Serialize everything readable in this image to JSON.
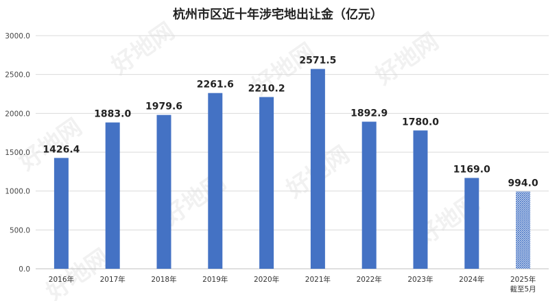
{
  "chart_data": {
    "type": "bar",
    "title": "杭州市区近十年涉宅地出让金（亿元）",
    "categories": [
      "2016年",
      "2017年",
      "2018年",
      "2019年",
      "2020年",
      "2021年",
      "2022年",
      "2023年",
      "2024年",
      "2025年"
    ],
    "category_sublabels": [
      "",
      "",
      "",
      "",
      "",
      "",
      "",
      "",
      "",
      "截至5月"
    ],
    "values": [
      1426.4,
      1883.0,
      1979.6,
      2261.6,
      2210.2,
      2571.5,
      1892.9,
      1780.0,
      1169.0,
      994.0
    ],
    "data_labels": [
      "1426.4",
      "1883.0",
      "1979.6",
      "2261.6",
      "2210.2",
      "2571.5",
      "1892.9",
      "1780.0",
      "1169.0",
      "994.0"
    ],
    "yticks": [
      "0.0",
      "500.0",
      "1000.0",
      "1500.0",
      "2000.0",
      "2500.0",
      "3000.0"
    ],
    "ylim": [
      0,
      3000
    ],
    "xlabel": "",
    "ylabel": "",
    "grid": true,
    "bar_color": "#4472c4",
    "partial_bar_pattern": "crosshatch",
    "partial_bar_index": 9,
    "watermark_text": "好地网"
  }
}
